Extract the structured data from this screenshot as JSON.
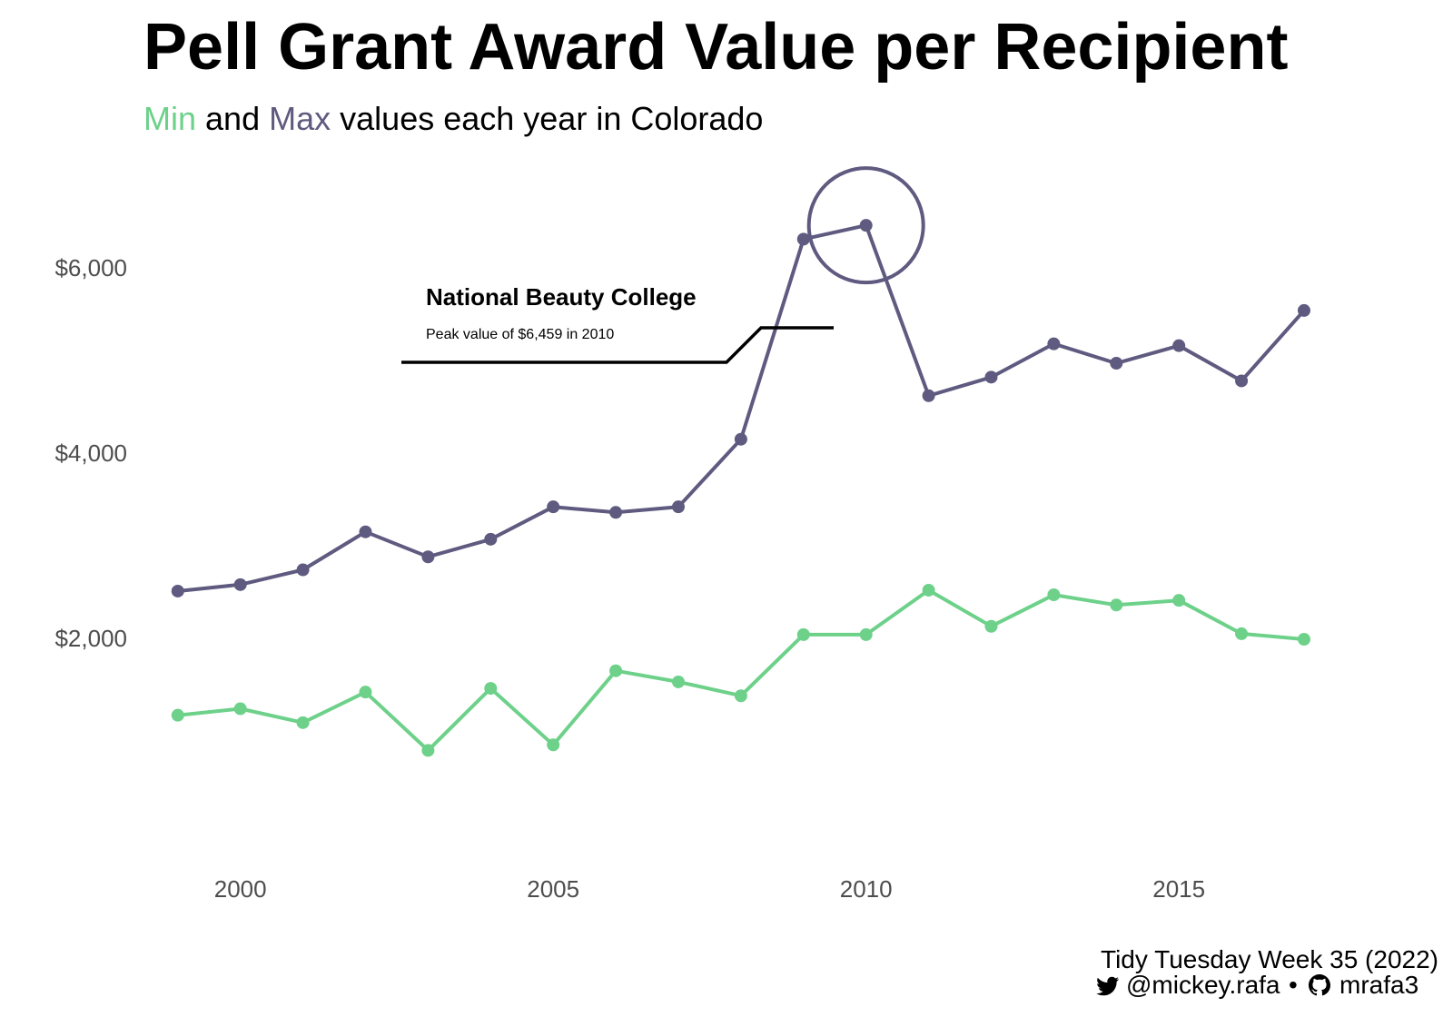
{
  "chart_data": {
    "type": "line",
    "title": "Pell Grant Award Value per Recipient",
    "subtitle": {
      "min_word": "Min",
      "and_word": "and",
      "max_word": "Max",
      "rest": "values each year in Colorado"
    },
    "x": [
      1999,
      2000,
      2001,
      2002,
      2003,
      2004,
      2005,
      2006,
      2007,
      2008,
      2009,
      2010,
      2011,
      2012,
      2013,
      2014,
      2015,
      2016,
      2017
    ],
    "series": [
      {
        "name": "Max",
        "color": "#5f5a7f",
        "values": [
          2510,
          2580,
          2740,
          3150,
          2880,
          3070,
          3420,
          3360,
          3420,
          4150,
          6310,
          6459,
          4620,
          4820,
          5180,
          4970,
          5160,
          4780,
          5540
        ]
      },
      {
        "name": "Min",
        "color": "#6dd18a",
        "values": [
          1170,
          1240,
          1090,
          1420,
          790,
          1460,
          850,
          1650,
          1530,
          1380,
          2040,
          2040,
          2520,
          2130,
          2470,
          2360,
          2410,
          2050,
          1990
        ]
      }
    ],
    "x_ticks": [
      2000,
      2005,
      2010,
      2015
    ],
    "x_tick_labels": [
      "2000",
      "2005",
      "2010",
      "2015"
    ],
    "y_ticks": [
      2000,
      4000,
      6000
    ],
    "y_tick_labels": [
      "$2,000",
      "$4,000",
      "$6,000"
    ],
    "xlim": [
      1997.9,
      2018.8
    ],
    "ylim": [
      0,
      7000
    ],
    "grid": false,
    "legend": "none (colored words in subtitle)",
    "annotation": {
      "title": "National Beauty College",
      "text": "Peak value of $6,459 in 2010",
      "x": 2010,
      "y": 6459
    }
  },
  "caption": {
    "line1": "Tidy Tuesday Week 35 (2022)",
    "twitter_icon": "twitter-bird-icon",
    "twitter": "@mickey.rafa",
    "separator": "•",
    "github_icon": "github-icon",
    "github": "mrafa3"
  }
}
